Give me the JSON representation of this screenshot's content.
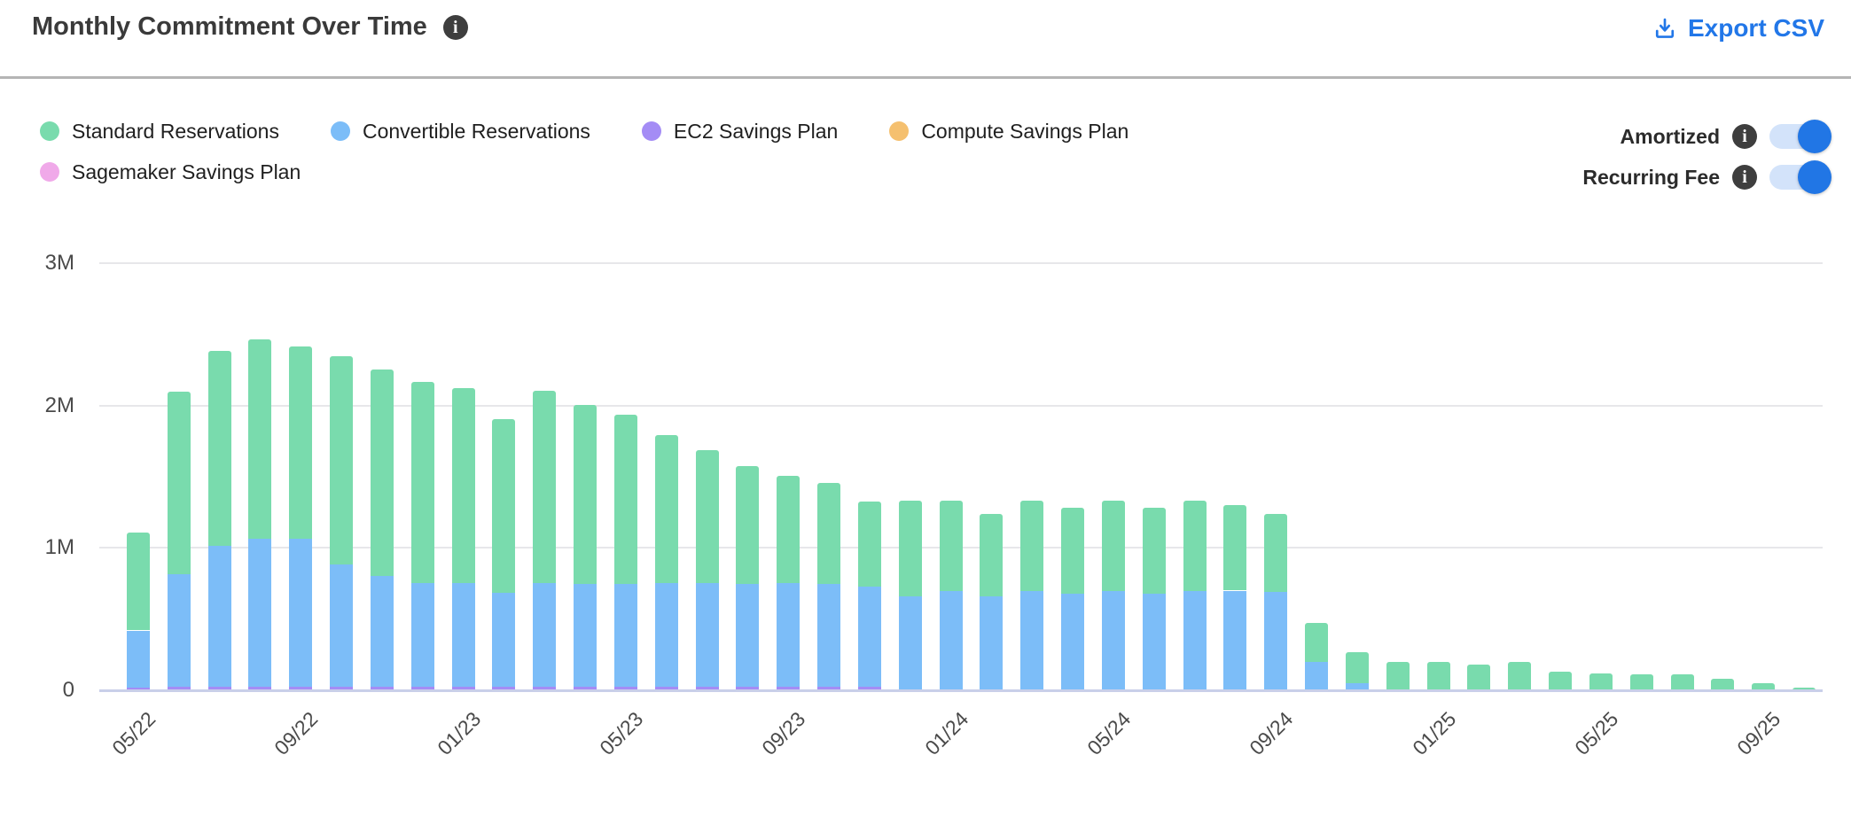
{
  "header": {
    "title": "Monthly Commitment Over Time",
    "export_label": "Export CSV"
  },
  "toggles": [
    {
      "label": "Amortized",
      "state": "on"
    },
    {
      "label": "Recurring Fee",
      "state": "on"
    }
  ],
  "colors": {
    "accent_blue": "#2277e8",
    "toggle_on": "#2176e5",
    "toggle_track": "#d3e3fa",
    "info_badge": "#3e3e3e",
    "gridline": "#e7e7ea",
    "axis_baseline": "#c9cfe9",
    "tick_text": "#4a4a4a"
  },
  "chart_data": {
    "type": "bar",
    "stacked": true,
    "title": "Monthly Commitment Over Time",
    "xlabel": "",
    "ylabel": "",
    "unit": "M",
    "ylim_M": [
      0,
      3
    ],
    "grid": true,
    "legend_position": "top-left",
    "y_ticks": [
      {
        "label": "3M",
        "value": 3
      },
      {
        "label": "2M",
        "value": 2
      },
      {
        "label": "1M",
        "value": 1
      },
      {
        "label": "0",
        "value": 0
      }
    ],
    "x_tick_every": 4,
    "x_tick_labels": [
      "05/22",
      "09/22",
      "01/23",
      "05/23",
      "09/23",
      "01/24",
      "05/24",
      "09/24",
      "01/25",
      "05/25",
      "09/25"
    ],
    "categories": [
      "05/22",
      "06/22",
      "07/22",
      "08/22",
      "09/22",
      "10/22",
      "11/22",
      "12/22",
      "01/23",
      "02/23",
      "03/23",
      "04/23",
      "05/23",
      "06/23",
      "07/23",
      "08/23",
      "09/23",
      "10/23",
      "11/23",
      "12/23",
      "01/24",
      "02/24",
      "03/24",
      "04/24",
      "05/24",
      "06/24",
      "07/24",
      "08/24",
      "09/24",
      "10/24",
      "11/24",
      "12/24",
      "01/25",
      "02/25",
      "03/25",
      "04/25",
      "05/25",
      "06/25",
      "07/25",
      "08/25",
      "09/25",
      "10/25"
    ],
    "stack_order_bottom_to_top": [
      "Sagemaker Savings Plan",
      "Compute Savings Plan",
      "EC2 Savings Plan",
      "Convertible Reservations",
      "Standard Reservations"
    ],
    "series": [
      {
        "name": "Standard Reservations",
        "color": "#79dbad",
        "values": [
          0.69,
          1.28,
          1.37,
          1.4,
          1.35,
          1.46,
          1.45,
          1.41,
          1.37,
          1.22,
          1.35,
          1.26,
          1.19,
          1.04,
          0.93,
          0.83,
          0.75,
          0.71,
          0.6,
          0.67,
          0.63,
          0.58,
          0.63,
          0.6,
          0.63,
          0.6,
          0.63,
          0.6,
          0.55,
          0.27,
          0.22,
          0.2,
          0.2,
          0.18,
          0.2,
          0.13,
          0.12,
          0.11,
          0.11,
          0.08,
          0.05,
          0.02
        ]
      },
      {
        "name": "Convertible Reservations",
        "color": "#7cbdf8",
        "values": [
          0.4,
          0.79,
          0.99,
          1.04,
          1.04,
          0.86,
          0.78,
          0.73,
          0.73,
          0.66,
          0.73,
          0.72,
          0.72,
          0.73,
          0.73,
          0.72,
          0.73,
          0.72,
          0.7,
          0.66,
          0.7,
          0.66,
          0.7,
          0.68,
          0.7,
          0.68,
          0.7,
          0.7,
          0.69,
          0.2,
          0.05,
          0,
          0,
          0,
          0,
          0,
          0,
          0,
          0,
          0,
          0,
          0
        ]
      },
      {
        "name": "EC2 Savings Plan",
        "color": "#a48cf5",
        "values": [
          0.015,
          0.02,
          0.02,
          0.02,
          0.02,
          0.02,
          0.02,
          0.02,
          0.02,
          0.02,
          0.02,
          0.02,
          0.02,
          0.02,
          0.02,
          0.02,
          0.02,
          0.02,
          0.02,
          0,
          0,
          0,
          0,
          0,
          0,
          0,
          0,
          0,
          0,
          0,
          0,
          0,
          0,
          0,
          0,
          0,
          0,
          0,
          0,
          0,
          0,
          0
        ]
      },
      {
        "name": "Compute Savings Plan",
        "color": "#f5c06f",
        "values": [
          0,
          0,
          0,
          0,
          0,
          0,
          0,
          0,
          0,
          0,
          0,
          0,
          0,
          0,
          0,
          0,
          0,
          0,
          0,
          0,
          0,
          0,
          0,
          0,
          0,
          0,
          0,
          0,
          0,
          0,
          0,
          0,
          0,
          0,
          0,
          0,
          0,
          0,
          0,
          0,
          0,
          0
        ]
      },
      {
        "name": "Sagemaker Savings Plan",
        "color": "#f0a9e9",
        "values": [
          0.005,
          0.005,
          0.005,
          0.005,
          0.005,
          0.005,
          0.005,
          0.005,
          0.005,
          0.005,
          0.005,
          0.005,
          0.005,
          0.005,
          0.005,
          0.005,
          0.005,
          0.005,
          0.005,
          0,
          0,
          0,
          0,
          0,
          0,
          0,
          0,
          0,
          0,
          0,
          0,
          0,
          0,
          0,
          0,
          0,
          0,
          0,
          0,
          0,
          0,
          0
        ]
      }
    ]
  }
}
